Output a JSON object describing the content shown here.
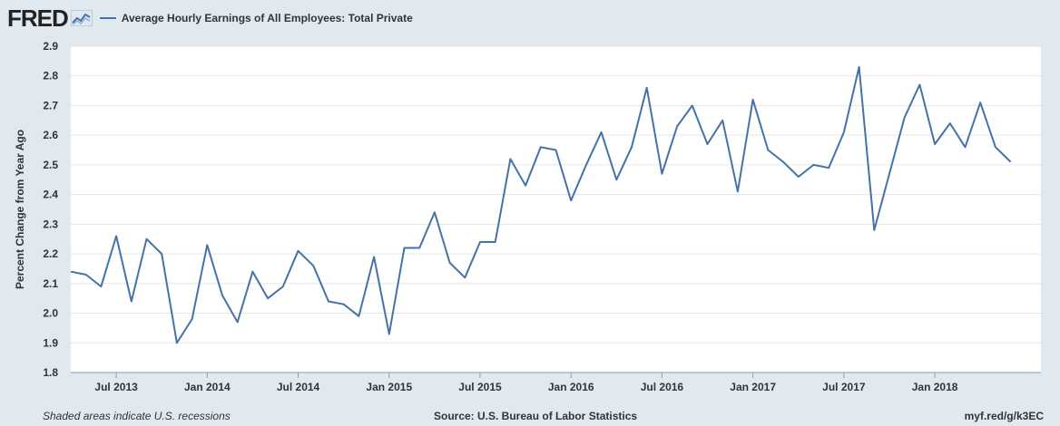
{
  "header": {
    "logo_text": "FRED",
    "legend_label": "Average Hourly Earnings of All Employees: Total Private",
    "series_color": "#4572a7"
  },
  "footer": {
    "recession_note": "Shaded areas indicate U.S. recessions",
    "source": "Source: U.S. Bureau of Labor Statistics",
    "link": "myf.red/g/k3EC"
  },
  "chart_data": {
    "type": "line",
    "ylabel": "Percent Change from Year Ago",
    "ylim": [
      1.8,
      2.9
    ],
    "yticks": [
      "1.8",
      "1.9",
      "2.0",
      "2.1",
      "2.2",
      "2.3",
      "2.4",
      "2.5",
      "2.6",
      "2.7",
      "2.8",
      "2.9"
    ],
    "xticks": [
      "Jul 2013",
      "Jan 2014",
      "Jul 2014",
      "Jan 2015",
      "Jul 2015",
      "Jan 2016",
      "Jul 2016",
      "Jan 2017",
      "Jul 2017",
      "Jan 2018"
    ],
    "grid": true,
    "x_start": "2013-04",
    "x_end": "2018-08",
    "series": [
      {
        "name": "Average Hourly Earnings of All Employees: Total Private",
        "x": [
          "2013-04",
          "2013-05",
          "2013-06",
          "2013-07",
          "2013-08",
          "2013-09",
          "2013-10",
          "2013-11",
          "2013-12",
          "2014-01",
          "2014-02",
          "2014-03",
          "2014-04",
          "2014-05",
          "2014-06",
          "2014-07",
          "2014-08",
          "2014-09",
          "2014-10",
          "2014-11",
          "2014-12",
          "2015-01",
          "2015-02",
          "2015-03",
          "2015-04",
          "2015-05",
          "2015-06",
          "2015-07",
          "2015-08",
          "2015-09",
          "2015-10",
          "2015-11",
          "2015-12",
          "2016-01",
          "2016-02",
          "2016-03",
          "2016-04",
          "2016-05",
          "2016-06",
          "2016-07",
          "2016-08",
          "2016-09",
          "2016-10",
          "2016-11",
          "2016-12",
          "2017-01",
          "2017-02",
          "2017-03",
          "2017-04",
          "2017-05",
          "2017-06",
          "2017-07",
          "2017-08",
          "2017-09",
          "2017-10",
          "2017-11",
          "2017-12",
          "2018-01",
          "2018-02",
          "2018-03",
          "2018-04",
          "2018-05",
          "2018-06"
        ],
        "values": [
          2.14,
          2.13,
          2.09,
          2.26,
          2.04,
          2.25,
          2.2,
          1.9,
          1.98,
          2.23,
          2.06,
          1.97,
          2.14,
          2.05,
          2.09,
          2.21,
          2.16,
          2.04,
          2.03,
          1.99,
          2.19,
          1.93,
          2.22,
          2.22,
          2.34,
          2.17,
          2.12,
          2.24,
          2.24,
          2.52,
          2.43,
          2.56,
          2.55,
          2.38,
          2.5,
          2.61,
          2.45,
          2.56,
          2.76,
          2.47,
          2.63,
          2.7,
          2.57,
          2.65,
          2.41,
          2.72,
          2.55,
          2.51,
          2.46,
          2.5,
          2.49,
          2.61,
          2.83,
          2.28,
          2.47,
          2.66,
          2.77,
          2.57,
          2.64,
          2.56,
          2.71,
          2.56,
          2.51
        ]
      }
    ]
  }
}
